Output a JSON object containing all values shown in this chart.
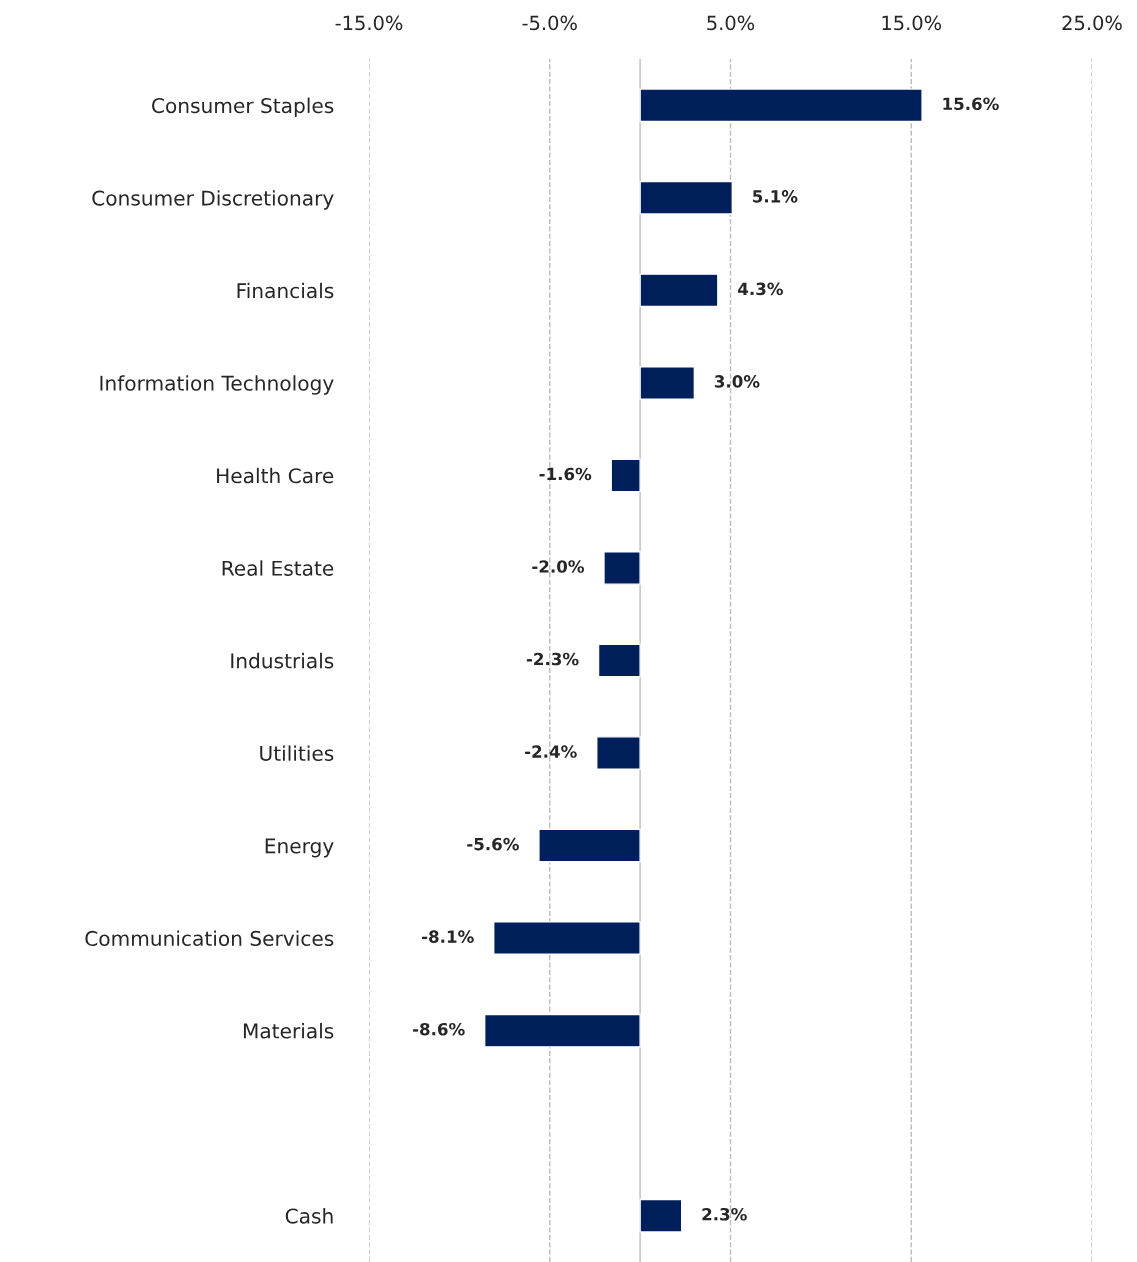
{
  "chart_data": {
    "type": "bar",
    "orientation": "horizontal",
    "categories": [
      "Consumer Staples",
      "Consumer Discretionary",
      "Financials",
      "Information Technology",
      "Health Care",
      "Real Estate",
      "Industrials",
      "Utilities",
      "Energy",
      "Communication Services",
      "Materials",
      null,
      "Cash"
    ],
    "values": [
      15.6,
      5.1,
      4.3,
      3.0,
      -1.6,
      -2.0,
      -2.3,
      -2.4,
      -5.6,
      -8.1,
      -8.6,
      null,
      2.3
    ],
    "value_labels": [
      "15.6%",
      "5.1%",
      "4.3%",
      "3.0%",
      "-1.6%",
      "-2.0%",
      "-2.3%",
      "-2.4%",
      "-5.6%",
      "-8.1%",
      "-8.6%",
      null,
      "2.3%"
    ],
    "color": "#001f5b",
    "xlim": [
      -15,
      25
    ],
    "xticks": [
      {
        "value": -15,
        "label": "-15.0%"
      },
      {
        "value": -5,
        "label": "-5.0%"
      },
      {
        "value": 5,
        "label": "5.0%"
      },
      {
        "value": 15,
        "label": "15.0%"
      },
      {
        "value": 25,
        "label": "25.0%"
      }
    ],
    "grid": "x",
    "line_style": "dashed",
    "legend": false,
    "ref_lines": [
      {
        "axis": "x",
        "value": 0,
        "label": null,
        "color": "#c8c8c8",
        "line_style": "solid"
      }
    ]
  }
}
